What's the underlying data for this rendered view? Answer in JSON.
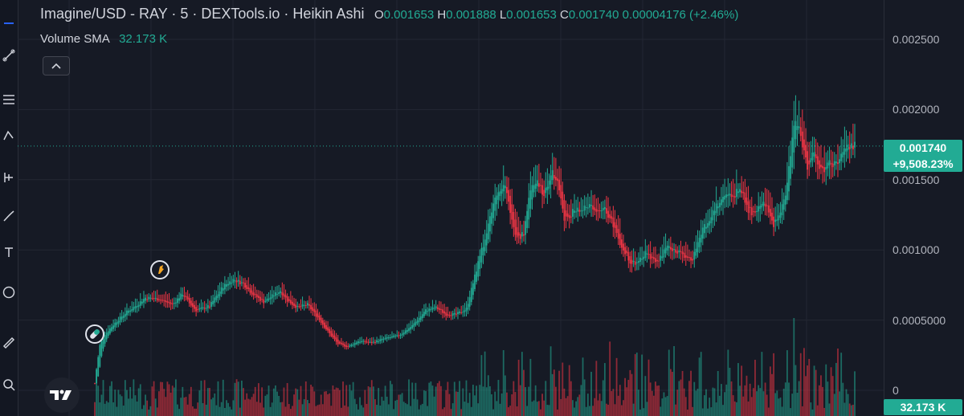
{
  "header": {
    "title": "Imagine/USD - RAY · 5 · DEXTools.io · Heikin Ashi",
    "o_label": "O",
    "o_value": "0.001653",
    "h_label": "H",
    "h_value": "0.001888",
    "l_label": "L",
    "l_value": "0.001653",
    "c_label": "C",
    "c_value": "0.001740",
    "change": "0.00004176 (+2.46%)"
  },
  "volume_legend": {
    "name": "Volume SMA",
    "value": "32.173 K"
  },
  "price_tag": {
    "price": "0.001740",
    "change": "+9,508.23%"
  },
  "volume_tag": "32.173 K",
  "icons": {
    "toolbar": [
      "minus-icon",
      "trend-line-icon",
      "fib-icon",
      "pattern-icon",
      "prediction-icon",
      "brush-icon",
      "text-icon",
      "emoji-icon",
      "ruler-icon",
      "zoom-icon"
    ],
    "collapse": "chevron-up-icon",
    "events": [
      "pill-icon",
      "rocket-icon"
    ],
    "logo": "tradingview-logo"
  },
  "colors": {
    "up": "#22ab94",
    "down": "#f23645",
    "background": "#161a25",
    "grid": "#232733"
  },
  "chart_data": {
    "type": "candlestick",
    "title": "Imagine/USD - RAY · 5 · DEXTools.io · Heikin Ashi",
    "ylim": [
      0,
      0.0026
    ],
    "ytick_labels": [
      "0.002500",
      "0.002000",
      "0.001500",
      "0.001000",
      "0.0005000",
      "0"
    ],
    "ytick_values": [
      0.0025,
      0.002,
      0.0015,
      0.001,
      0.0005,
      0
    ],
    "grid": true,
    "last_price": 0.00174,
    "price_anchors": [
      [
        0,
        5e-05
      ],
      [
        1,
        0.00015
      ],
      [
        3,
        0.00032
      ],
      [
        6,
        0.0004
      ],
      [
        12,
        0.00048
      ],
      [
        18,
        0.00055
      ],
      [
        24,
        0.0006
      ],
      [
        30,
        0.00066
      ],
      [
        38,
        0.00065
      ],
      [
        46,
        0.00061
      ],
      [
        52,
        0.00069
      ],
      [
        56,
        0.00062
      ],
      [
        60,
        0.00057
      ],
      [
        68,
        0.0006
      ],
      [
        76,
        0.00074
      ],
      [
        82,
        0.00079
      ],
      [
        88,
        0.00076
      ],
      [
        94,
        0.00068
      ],
      [
        100,
        0.00063
      ],
      [
        106,
        0.00068
      ],
      [
        110,
        0.00071
      ],
      [
        114,
        0.00064
      ],
      [
        120,
        0.00059
      ],
      [
        126,
        0.00061
      ],
      [
        132,
        0.00052
      ],
      [
        138,
        0.00042
      ],
      [
        144,
        0.00033
      ],
      [
        150,
        0.00031
      ],
      [
        156,
        0.00035
      ],
      [
        164,
        0.00034
      ],
      [
        172,
        0.00037
      ],
      [
        180,
        0.00039
      ],
      [
        188,
        0.00046
      ],
      [
        196,
        0.00057
      ],
      [
        202,
        0.00059
      ],
      [
        208,
        0.00054
      ],
      [
        214,
        0.00054
      ],
      [
        220,
        0.00058
      ],
      [
        228,
        0.00095
      ],
      [
        234,
        0.00122
      ],
      [
        238,
        0.0014
      ],
      [
        242,
        0.00148
      ],
      [
        246,
        0.00128
      ],
      [
        250,
        0.00108
      ],
      [
        254,
        0.00112
      ],
      [
        258,
        0.00142
      ],
      [
        262,
        0.00148
      ],
      [
        266,
        0.0014
      ],
      [
        270,
        0.00155
      ],
      [
        274,
        0.00152
      ],
      [
        278,
        0.00122
      ],
      [
        284,
        0.00128
      ],
      [
        288,
        0.00128
      ],
      [
        292,
        0.00132
      ],
      [
        296,
        0.00128
      ],
      [
        302,
        0.00128
      ],
      [
        306,
        0.00122
      ],
      [
        310,
        0.00108
      ],
      [
        314,
        0.00098
      ],
      [
        318,
        0.0009
      ],
      [
        322,
        0.00092
      ],
      [
        326,
        0.00098
      ],
      [
        330,
        0.00094
      ],
      [
        334,
        0.00092
      ],
      [
        338,
        0.00102
      ],
      [
        342,
        0.001
      ],
      [
        346,
        0.00098
      ],
      [
        350,
        0.00094
      ],
      [
        354,
        0.00094
      ],
      [
        360,
        0.00115
      ],
      [
        366,
        0.00126
      ],
      [
        372,
        0.0014
      ],
      [
        378,
        0.00138
      ],
      [
        382,
        0.00146
      ],
      [
        386,
        0.0013
      ],
      [
        390,
        0.00125
      ],
      [
        394,
        0.00134
      ],
      [
        398,
        0.00132
      ],
      [
        402,
        0.00118
      ],
      [
        406,
        0.00125
      ],
      [
        410,
        0.00146
      ],
      [
        414,
        0.00192
      ],
      [
        418,
        0.00182
      ],
      [
        422,
        0.0016
      ],
      [
        426,
        0.00168
      ],
      [
        430,
        0.00156
      ],
      [
        434,
        0.00161
      ],
      [
        438,
        0.0016
      ],
      [
        442,
        0.00168
      ],
      [
        446,
        0.00172
      ],
      [
        450,
        0.00174
      ]
    ],
    "volume_sma": 32.173
  }
}
